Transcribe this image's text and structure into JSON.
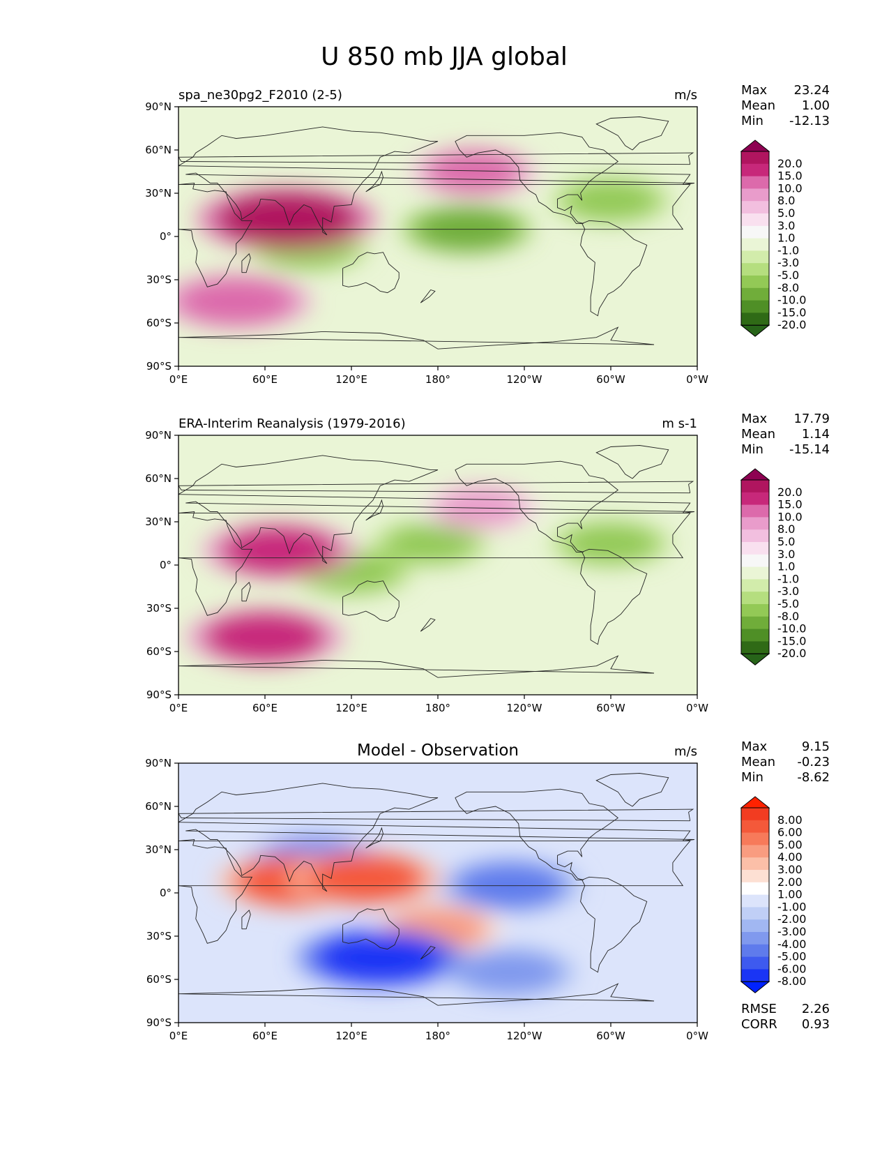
{
  "figure": {
    "title": "U 850 mb JJA global"
  },
  "lat_ticks": [
    "90°N",
    "60°N",
    "30°N",
    "0°",
    "30°S",
    "60°S",
    "90°S"
  ],
  "lon_ticks": [
    "0°E",
    "60°E",
    "120°E",
    "180°",
    "120°W",
    "60°W",
    "0°W"
  ],
  "panels": [
    {
      "id": "model",
      "left_title": "spa_ne30pg2_F2010 (2-5)",
      "center_title": "",
      "units": "m/s",
      "stats": [
        {
          "label": "Max",
          "value": "23.24"
        },
        {
          "label": "Mean",
          "value": "1.00"
        },
        {
          "label": "Min",
          "value": "-12.13"
        }
      ],
      "colorbar": {
        "levels": [
          "20.0",
          "15.0",
          "10.0",
          "8.0",
          "5.0",
          "3.0",
          "1.0",
          "-1.0",
          "-3.0",
          "-5.0",
          "-8.0",
          "-10.0",
          "-15.0",
          "-20.0"
        ],
        "colors": [
          "#8e0152",
          "#b0155f",
          "#c7287a",
          "#dc6aab",
          "#e99ccb",
          "#f2bfdf",
          "#f9e0ef",
          "#f7f7f7",
          "#eaf5d6",
          "#d2ecab",
          "#b5de7f",
          "#93c956",
          "#70ad3a",
          "#4f8f26",
          "#2f6a16",
          "#276419"
        ]
      },
      "extra_stats": []
    },
    {
      "id": "obs",
      "left_title": "ERA-Interim Reanalysis (1979-2016)",
      "center_title": "",
      "units": "m s-1",
      "stats": [
        {
          "label": "Max",
          "value": "17.79"
        },
        {
          "label": "Mean",
          "value": "1.14"
        },
        {
          "label": "Min",
          "value": "-15.14"
        }
      ],
      "colorbar": {
        "levels": [
          "20.0",
          "15.0",
          "10.0",
          "8.0",
          "5.0",
          "3.0",
          "1.0",
          "-1.0",
          "-3.0",
          "-5.0",
          "-8.0",
          "-10.0",
          "-15.0",
          "-20.0"
        ],
        "colors": [
          "#8e0152",
          "#b0155f",
          "#c7287a",
          "#dc6aab",
          "#e99ccb",
          "#f2bfdf",
          "#f9e0ef",
          "#f7f7f7",
          "#eaf5d6",
          "#d2ecab",
          "#b5de7f",
          "#93c956",
          "#70ad3a",
          "#4f8f26",
          "#2f6a16",
          "#276419"
        ]
      },
      "extra_stats": []
    },
    {
      "id": "diff",
      "left_title": "",
      "center_title": "Model - Observation",
      "units": "m/s",
      "stats": [
        {
          "label": "Max",
          "value": "9.15"
        },
        {
          "label": "Mean",
          "value": "-0.23"
        },
        {
          "label": "Min",
          "value": "-8.62"
        }
      ],
      "colorbar": {
        "levels": [
          "8.00",
          "6.00",
          "5.00",
          "4.00",
          "3.00",
          "2.00",
          "1.00",
          "-1.00",
          "-2.00",
          "-3.00",
          "-4.00",
          "-5.00",
          "-6.00",
          "-8.00"
        ],
        "colors": [
          "#ff2200",
          "#f23c21",
          "#f4593a",
          "#f77a5a",
          "#f99c80",
          "#fbbfa8",
          "#fde0d3",
          "#ffffff",
          "#dce4fb",
          "#c0cff6",
          "#a1b7f2",
          "#8099ee",
          "#5f7bec",
          "#3e5aef",
          "#1a35f5",
          "#0022ff"
        ]
      },
      "extra_stats": [
        {
          "label": "RMSE",
          "value": "2.26"
        },
        {
          "label": "CORR",
          "value": "0.93"
        }
      ]
    }
  ],
  "chart_data": [
    {
      "type": "heatmap",
      "title": "spa_ne30pg2_F2010 (2-5)",
      "units": "m/s",
      "xlabel": "",
      "ylabel": "",
      "xlim": [
        0,
        360
      ],
      "ylim": [
        -90,
        90
      ],
      "projection": "cylindrical (lon 0°E to 360°)",
      "levels": [
        -20,
        -15,
        -10,
        -8,
        -5,
        -3,
        -1,
        1,
        3,
        5,
        8,
        10,
        15,
        20
      ],
      "stats": {
        "max": 23.24,
        "mean": 1.0,
        "min": -12.13
      },
      "features": [
        {
          "lon": 75,
          "lat": 12,
          "value": 20
        },
        {
          "lon": 200,
          "lat": 5,
          "value": -10
        },
        {
          "lon": 40,
          "lat": -45,
          "value": 14
        },
        {
          "lon": 205,
          "lat": 45,
          "value": 10
        },
        {
          "lon": 300,
          "lat": 25,
          "value": -8
        },
        {
          "lon": 90,
          "lat": -8,
          "value": -8
        }
      ]
    },
    {
      "type": "heatmap",
      "title": "ERA-Interim Reanalysis (1979-2016)",
      "units": "m s-1",
      "xlabel": "",
      "ylabel": "",
      "xlim": [
        0,
        360
      ],
      "ylim": [
        -90,
        90
      ],
      "projection": "cylindrical (lon 0°E to 360°)",
      "levels": [
        -20,
        -15,
        -10,
        -8,
        -5,
        -3,
        -1,
        1,
        3,
        5,
        8,
        10,
        15,
        20
      ],
      "stats": {
        "max": 17.79,
        "mean": 1.14,
        "min": -15.14
      },
      "features": [
        {
          "lon": 70,
          "lat": 10,
          "value": 15
        },
        {
          "lon": 175,
          "lat": 15,
          "value": -7
        },
        {
          "lon": 60,
          "lat": -50,
          "value": 16
        },
        {
          "lon": 210,
          "lat": 40,
          "value": 8
        },
        {
          "lon": 300,
          "lat": 15,
          "value": -8
        },
        {
          "lon": 120,
          "lat": -5,
          "value": -8
        }
      ]
    },
    {
      "type": "heatmap",
      "title": "Model - Observation",
      "units": "m/s",
      "xlabel": "",
      "ylabel": "",
      "xlim": [
        0,
        360
      ],
      "ylim": [
        -90,
        90
      ],
      "projection": "cylindrical (lon 0°E to 360°)",
      "levels": [
        -8,
        -6,
        -5,
        -4,
        -3,
        -2,
        -1,
        1,
        2,
        3,
        4,
        5,
        6,
        8
      ],
      "stats": {
        "max": 9.15,
        "mean": -0.23,
        "min": -8.62,
        "rmse": 2.26,
        "corr": 0.93
      },
      "features": [
        {
          "lon": 80,
          "lat": 8,
          "value": 6
        },
        {
          "lon": 130,
          "lat": 10,
          "value": 6
        },
        {
          "lon": 140,
          "lat": -45,
          "value": -7
        },
        {
          "lon": 230,
          "lat": 5,
          "value": -5
        },
        {
          "lon": 180,
          "lat": -25,
          "value": 4
        },
        {
          "lon": 95,
          "lat": 22,
          "value": -5
        },
        {
          "lon": 230,
          "lat": -55,
          "value": -4
        }
      ]
    }
  ]
}
